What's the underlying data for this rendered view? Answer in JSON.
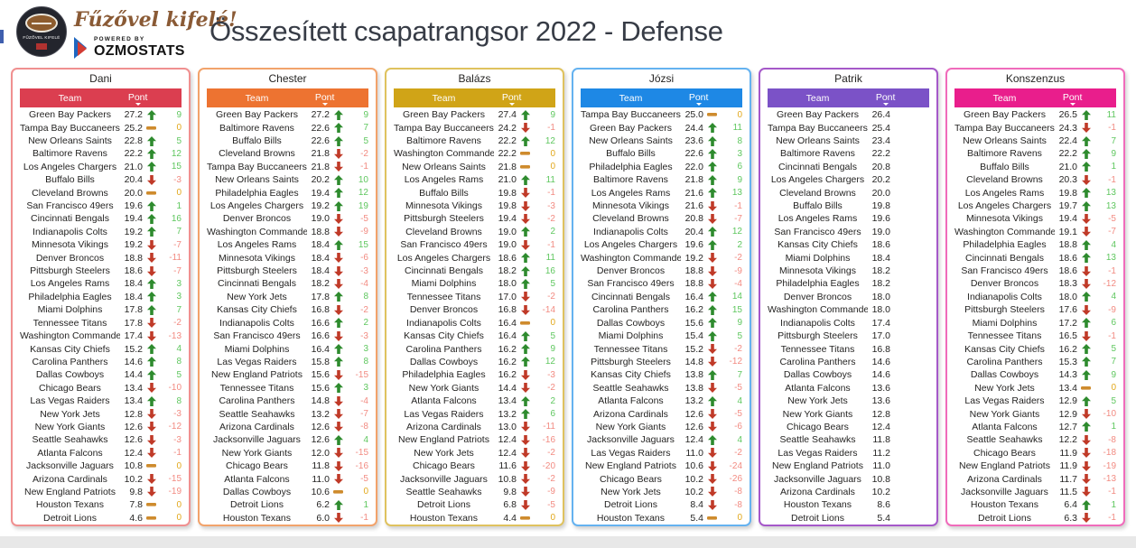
{
  "header": {
    "title": "Összesített csapatrangsor 2022 - Defense",
    "logo": {
      "badge_text": "FŰZŐVEL KIFELÉ",
      "script_text": "Fűzővel kifelé!",
      "powered_by_label": "POWERED BY",
      "brand": "OZMOSTATS"
    }
  },
  "table_columns": {
    "team": "Team",
    "pont": "Pont"
  },
  "trend_styles": {
    "up": {
      "icon": "arrow-up-icon",
      "icon_color": "#2E8B2E",
      "text_color": "#5FC75F"
    },
    "down": {
      "icon": "arrow-down-icon",
      "icon_color": "#C03A28",
      "text_color": "#F28B82"
    },
    "flat": {
      "icon": "dash-icon",
      "icon_color": "#CE8B2D",
      "text_color": "#E2A81C"
    }
  },
  "chart_data": [
    {
      "type": "table",
      "title": "Dani",
      "accent_color": "#DB3E50",
      "border_color": "#F09090",
      "columns": [
        "Team",
        "Pont"
      ],
      "has_trend": true,
      "rows": [
        [
          "Green Bay Packers",
          27.2,
          "up",
          9
        ],
        [
          "Tampa Bay Buccaneers",
          25.2,
          "flat",
          0
        ],
        [
          "New Orleans Saints",
          22.8,
          "up",
          5
        ],
        [
          "Baltimore Ravens",
          22.2,
          "up",
          12
        ],
        [
          "Los Angeles Chargers",
          21.0,
          "up",
          15
        ],
        [
          "Buffalo Bills",
          20.4,
          "down",
          -3
        ],
        [
          "Cleveland Browns",
          20.0,
          "flat",
          0
        ],
        [
          "San Francisco 49ers",
          19.6,
          "up",
          1
        ],
        [
          "Cincinnati Bengals",
          19.4,
          "up",
          16
        ],
        [
          "Indianapolis Colts",
          19.2,
          "up",
          7
        ],
        [
          "Minnesota Vikings",
          19.2,
          "down",
          -7
        ],
        [
          "Denver Broncos",
          18.8,
          "down",
          -11
        ],
        [
          "Pittsburgh Steelers",
          18.6,
          "down",
          -7
        ],
        [
          "Los Angeles Rams",
          18.4,
          "up",
          3
        ],
        [
          "Philadelphia Eagles",
          18.4,
          "up",
          3
        ],
        [
          "Miami Dolphins",
          17.8,
          "up",
          7
        ],
        [
          "Tennessee Titans",
          17.8,
          "down",
          -2
        ],
        [
          "Washington Commanders",
          17.4,
          "down",
          -13
        ],
        [
          "Kansas City Chiefs",
          15.2,
          "up",
          4
        ],
        [
          "Carolina Panthers",
          14.6,
          "up",
          8
        ],
        [
          "Dallas Cowboys",
          14.4,
          "up",
          5
        ],
        [
          "Chicago Bears",
          13.4,
          "down",
          -10
        ],
        [
          "Las Vegas Raiders",
          13.4,
          "up",
          8
        ],
        [
          "New York Jets",
          12.8,
          "down",
          -3
        ],
        [
          "New York Giants",
          12.6,
          "down",
          -12
        ],
        [
          "Seattle Seahawks",
          12.6,
          "down",
          -3
        ],
        [
          "Atlanta Falcons",
          12.4,
          "down",
          -1
        ],
        [
          "Jacksonville Jaguars",
          10.8,
          "flat",
          0
        ],
        [
          "Arizona Cardinals",
          10.2,
          "down",
          -15
        ],
        [
          "New England Patriots",
          9.8,
          "down",
          -19
        ],
        [
          "Houston Texans",
          7.8,
          "flat",
          0
        ],
        [
          "Detroit Lions",
          4.6,
          "flat",
          0
        ]
      ]
    },
    {
      "type": "table",
      "title": "Chester",
      "accent_color": "#ED7331",
      "border_color": "#F2A36B",
      "columns": [
        "Team",
        "Pont"
      ],
      "has_trend": true,
      "rows": [
        [
          "Green Bay Packers",
          27.2,
          "up",
          9
        ],
        [
          "Baltimore Ravens",
          22.6,
          "up",
          7
        ],
        [
          "Buffalo Bills",
          22.6,
          "up",
          5
        ],
        [
          "Cleveland Browns",
          21.8,
          "down",
          -2
        ],
        [
          "Tampa Bay Buccaneers",
          21.8,
          "down",
          -1
        ],
        [
          "New Orleans Saints",
          20.2,
          "up",
          10
        ],
        [
          "Philadelphia Eagles",
          19.4,
          "up",
          12
        ],
        [
          "Los Angeles Chargers",
          19.2,
          "up",
          19
        ],
        [
          "Denver Broncos",
          19.0,
          "down",
          -5
        ],
        [
          "Washington Commanders",
          18.8,
          "down",
          -9
        ],
        [
          "Los Angeles Rams",
          18.4,
          "up",
          15
        ],
        [
          "Minnesota Vikings",
          18.4,
          "down",
          -6
        ],
        [
          "Pittsburgh Steelers",
          18.4,
          "down",
          -3
        ],
        [
          "Cincinnati Bengals",
          18.2,
          "down",
          -4
        ],
        [
          "New York Jets",
          17.8,
          "up",
          8
        ],
        [
          "Kansas City Chiefs",
          16.8,
          "down",
          -2
        ],
        [
          "Indianapolis Colts",
          16.6,
          "up",
          2
        ],
        [
          "San Francisco 49ers",
          16.6,
          "down",
          -3
        ],
        [
          "Miami Dolphins",
          16.4,
          "up",
          3
        ],
        [
          "Las Vegas Raiders",
          15.8,
          "up",
          8
        ],
        [
          "New England Patriots",
          15.6,
          "down",
          -15
        ],
        [
          "Tennessee Titans",
          15.6,
          "up",
          3
        ],
        [
          "Carolina Panthers",
          14.8,
          "down",
          -4
        ],
        [
          "Seattle Seahawks",
          13.2,
          "down",
          -7
        ],
        [
          "Arizona Cardinals",
          12.6,
          "down",
          -8
        ],
        [
          "Jacksonville Jaguars",
          12.6,
          "up",
          4
        ],
        [
          "New York Giants",
          12.0,
          "down",
          -15
        ],
        [
          "Chicago Bears",
          11.8,
          "down",
          -16
        ],
        [
          "Atlanta Falcons",
          11.0,
          "down",
          -5
        ],
        [
          "Dallas Cowboys",
          10.6,
          "flat",
          0
        ],
        [
          "Detroit Lions",
          6.2,
          "up",
          1
        ],
        [
          "Houston Texans",
          6.0,
          "down",
          -1
        ]
      ]
    },
    {
      "type": "table",
      "title": "Balázs",
      "accent_color": "#D0A417",
      "border_color": "#DFC25E",
      "columns": [
        "Team",
        "Pont"
      ],
      "has_trend": true,
      "rows": [
        [
          "Green Bay Packers",
          27.4,
          "up",
          9
        ],
        [
          "Tampa Bay Buccaneers",
          24.2,
          "down",
          -1
        ],
        [
          "Baltimore Ravens",
          22.2,
          "up",
          12
        ],
        [
          "Washington Commanders",
          22.2,
          "flat",
          0
        ],
        [
          "New Orleans Saints",
          21.8,
          "flat",
          0
        ],
        [
          "Los Angeles Rams",
          21.0,
          "up",
          11
        ],
        [
          "Buffalo Bills",
          19.8,
          "down",
          -1
        ],
        [
          "Minnesota Vikings",
          19.8,
          "down",
          -3
        ],
        [
          "Pittsburgh Steelers",
          19.4,
          "down",
          -2
        ],
        [
          "Cleveland Browns",
          19.0,
          "up",
          2
        ],
        [
          "San Francisco 49ers",
          19.0,
          "down",
          -1
        ],
        [
          "Los Angeles Chargers",
          18.6,
          "up",
          11
        ],
        [
          "Cincinnati Bengals",
          18.2,
          "up",
          16
        ],
        [
          "Miami Dolphins",
          18.0,
          "up",
          5
        ],
        [
          "Tennessee Titans",
          17.0,
          "down",
          -2
        ],
        [
          "Denver Broncos",
          16.8,
          "down",
          -14
        ],
        [
          "Indianapolis Colts",
          16.4,
          "flat",
          0
        ],
        [
          "Kansas City Chiefs",
          16.4,
          "up",
          5
        ],
        [
          "Carolina Panthers",
          16.2,
          "up",
          9
        ],
        [
          "Dallas Cowboys",
          16.2,
          "up",
          12
        ],
        [
          "Philadelphia Eagles",
          16.2,
          "down",
          -3
        ],
        [
          "New York Giants",
          14.4,
          "down",
          -2
        ],
        [
          "Atlanta Falcons",
          13.4,
          "up",
          2
        ],
        [
          "Las Vegas Raiders",
          13.2,
          "up",
          6
        ],
        [
          "Arizona Cardinals",
          13.0,
          "down",
          -11
        ],
        [
          "New England Patriots",
          12.4,
          "down",
          -16
        ],
        [
          "New York Jets",
          12.4,
          "down",
          -2
        ],
        [
          "Chicago Bears",
          11.6,
          "down",
          -20
        ],
        [
          "Jacksonville Jaguars",
          10.8,
          "down",
          -2
        ],
        [
          "Seattle Seahawks",
          9.8,
          "down",
          -9
        ],
        [
          "Detroit Lions",
          6.8,
          "down",
          -5
        ],
        [
          "Houston Texans",
          4.4,
          "flat",
          0
        ]
      ]
    },
    {
      "type": "table",
      "title": "Józsi",
      "accent_color": "#1E88E5",
      "border_color": "#64B2F0",
      "columns": [
        "Team",
        "Pont"
      ],
      "has_trend": true,
      "rows": [
        [
          "Tampa Bay Buccaneers",
          25.0,
          "flat",
          0
        ],
        [
          "Green Bay Packers",
          24.4,
          "up",
          11
        ],
        [
          "New Orleans Saints",
          23.6,
          "up",
          8
        ],
        [
          "Buffalo Bills",
          22.6,
          "up",
          3
        ],
        [
          "Philadelphia Eagles",
          22.0,
          "up",
          6
        ],
        [
          "Baltimore Ravens",
          21.8,
          "up",
          9
        ],
        [
          "Los Angeles Rams",
          21.6,
          "up",
          13
        ],
        [
          "Minnesota Vikings",
          21.6,
          "down",
          -1
        ],
        [
          "Cleveland Browns",
          20.8,
          "down",
          -7
        ],
        [
          "Indianapolis Colts",
          20.4,
          "up",
          12
        ],
        [
          "Los Angeles Chargers",
          19.6,
          "up",
          2
        ],
        [
          "Washington Commanders",
          19.2,
          "down",
          -2
        ],
        [
          "Denver Broncos",
          18.8,
          "down",
          -9
        ],
        [
          "San Francisco 49ers",
          18.8,
          "down",
          -4
        ],
        [
          "Cincinnati Bengals",
          16.4,
          "up",
          14
        ],
        [
          "Carolina Panthers",
          16.2,
          "up",
          15
        ],
        [
          "Dallas Cowboys",
          15.6,
          "up",
          9
        ],
        [
          "Miami Dolphins",
          15.4,
          "up",
          5
        ],
        [
          "Tennessee Titans",
          15.2,
          "down",
          -2
        ],
        [
          "Pittsburgh Steelers",
          14.8,
          "down",
          -12
        ],
        [
          "Kansas City Chiefs",
          13.8,
          "up",
          7
        ],
        [
          "Seattle Seahawks",
          13.8,
          "down",
          -5
        ],
        [
          "Atlanta Falcons",
          13.2,
          "up",
          4
        ],
        [
          "Arizona Cardinals",
          12.6,
          "down",
          -5
        ],
        [
          "New York Giants",
          12.6,
          "down",
          -6
        ],
        [
          "Jacksonville Jaguars",
          12.4,
          "up",
          4
        ],
        [
          "Las Vegas Raiders",
          11.0,
          "down",
          -2
        ],
        [
          "New England Patriots",
          10.6,
          "down",
          -24
        ],
        [
          "Chicago Bears",
          10.2,
          "down",
          -26
        ],
        [
          "New York Jets",
          10.2,
          "down",
          -8
        ],
        [
          "Detroit Lions",
          8.4,
          "down",
          -8
        ],
        [
          "Houston Texans",
          5.4,
          "flat",
          0
        ]
      ]
    },
    {
      "type": "table",
      "title": "Patrik",
      "accent_color": "#7B52C7",
      "border_color": "#A558C9",
      "columns": [
        "Team",
        "Pont"
      ],
      "has_trend": false,
      "rows": [
        [
          "Green Bay Packers",
          26.4
        ],
        [
          "Tampa Bay Buccaneers",
          25.4
        ],
        [
          "New Orleans Saints",
          23.4
        ],
        [
          "Baltimore Ravens",
          22.2
        ],
        [
          "Cincinnati Bengals",
          20.8
        ],
        [
          "Los Angeles Chargers",
          20.2
        ],
        [
          "Cleveland Browns",
          20.0
        ],
        [
          "Buffalo Bills",
          19.8
        ],
        [
          "Los Angeles Rams",
          19.6
        ],
        [
          "San Francisco 49ers",
          19.0
        ],
        [
          "Kansas City Chiefs",
          18.6
        ],
        [
          "Miami Dolphins",
          18.4
        ],
        [
          "Minnesota Vikings",
          18.2
        ],
        [
          "Philadelphia Eagles",
          18.2
        ],
        [
          "Denver Broncos",
          18.0
        ],
        [
          "Washington Commanders",
          18.0
        ],
        [
          "Indianapolis Colts",
          17.4
        ],
        [
          "Pittsburgh Steelers",
          17.0
        ],
        [
          "Tennessee Titans",
          16.8
        ],
        [
          "Carolina Panthers",
          14.6
        ],
        [
          "Dallas Cowboys",
          14.6
        ],
        [
          "Atlanta Falcons",
          13.6
        ],
        [
          "New York Jets",
          13.6
        ],
        [
          "New York Giants",
          12.8
        ],
        [
          "Chicago Bears",
          12.4
        ],
        [
          "Seattle Seahawks",
          11.8
        ],
        [
          "Las Vegas Raiders",
          11.2
        ],
        [
          "New England Patriots",
          11.0
        ],
        [
          "Jacksonville Jaguars",
          10.8
        ],
        [
          "Arizona Cardinals",
          10.2
        ],
        [
          "Houston Texans",
          8.6
        ],
        [
          "Detroit Lions",
          5.4
        ]
      ]
    },
    {
      "type": "table",
      "title": "Konszenzus",
      "accent_color": "#E91E8C",
      "border_color": "#F06BBB",
      "columns": [
        "Team",
        "Pont"
      ],
      "has_trend": true,
      "rows": [
        [
          "Green Bay Packers",
          26.5,
          "up",
          11
        ],
        [
          "Tampa Bay Buccaneers",
          24.3,
          "down",
          -1
        ],
        [
          "New Orleans Saints",
          22.4,
          "up",
          7
        ],
        [
          "Baltimore Ravens",
          22.2,
          "up",
          9
        ],
        [
          "Buffalo Bills",
          21.0,
          "up",
          1
        ],
        [
          "Cleveland Browns",
          20.3,
          "down",
          -1
        ],
        [
          "Los Angeles Rams",
          19.8,
          "up",
          13
        ],
        [
          "Los Angeles Chargers",
          19.7,
          "up",
          13
        ],
        [
          "Minnesota Vikings",
          19.4,
          "down",
          -5
        ],
        [
          "Washington Commanders",
          19.1,
          "down",
          -7
        ],
        [
          "Philadelphia Eagles",
          18.8,
          "up",
          4
        ],
        [
          "Cincinnati Bengals",
          18.6,
          "up",
          13
        ],
        [
          "San Francisco 49ers",
          18.6,
          "down",
          -1
        ],
        [
          "Denver Broncos",
          18.3,
          "down",
          -12
        ],
        [
          "Indianapolis Colts",
          18.0,
          "up",
          4
        ],
        [
          "Pittsburgh Steelers",
          17.6,
          "down",
          -9
        ],
        [
          "Miami Dolphins",
          17.2,
          "up",
          6
        ],
        [
          "Tennessee Titans",
          16.5,
          "down",
          -1
        ],
        [
          "Kansas City Chiefs",
          16.2,
          "up",
          5
        ],
        [
          "Carolina Panthers",
          15.3,
          "up",
          7
        ],
        [
          "Dallas Cowboys",
          14.3,
          "up",
          9
        ],
        [
          "New York Jets",
          13.4,
          "flat",
          0
        ],
        [
          "Las Vegas Raiders",
          12.9,
          "up",
          5
        ],
        [
          "New York Giants",
          12.9,
          "down",
          -10
        ],
        [
          "Atlanta Falcons",
          12.7,
          "up",
          1
        ],
        [
          "Seattle Seahawks",
          12.2,
          "down",
          -8
        ],
        [
          "Chicago Bears",
          11.9,
          "down",
          -18
        ],
        [
          "New England Patriots",
          11.9,
          "down",
          -19
        ],
        [
          "Arizona Cardinals",
          11.7,
          "down",
          -13
        ],
        [
          "Jacksonville Jaguars",
          11.5,
          "down",
          -1
        ],
        [
          "Houston Texans",
          6.4,
          "up",
          1
        ],
        [
          "Detroit Lions",
          6.3,
          "down",
          -1
        ]
      ]
    }
  ]
}
